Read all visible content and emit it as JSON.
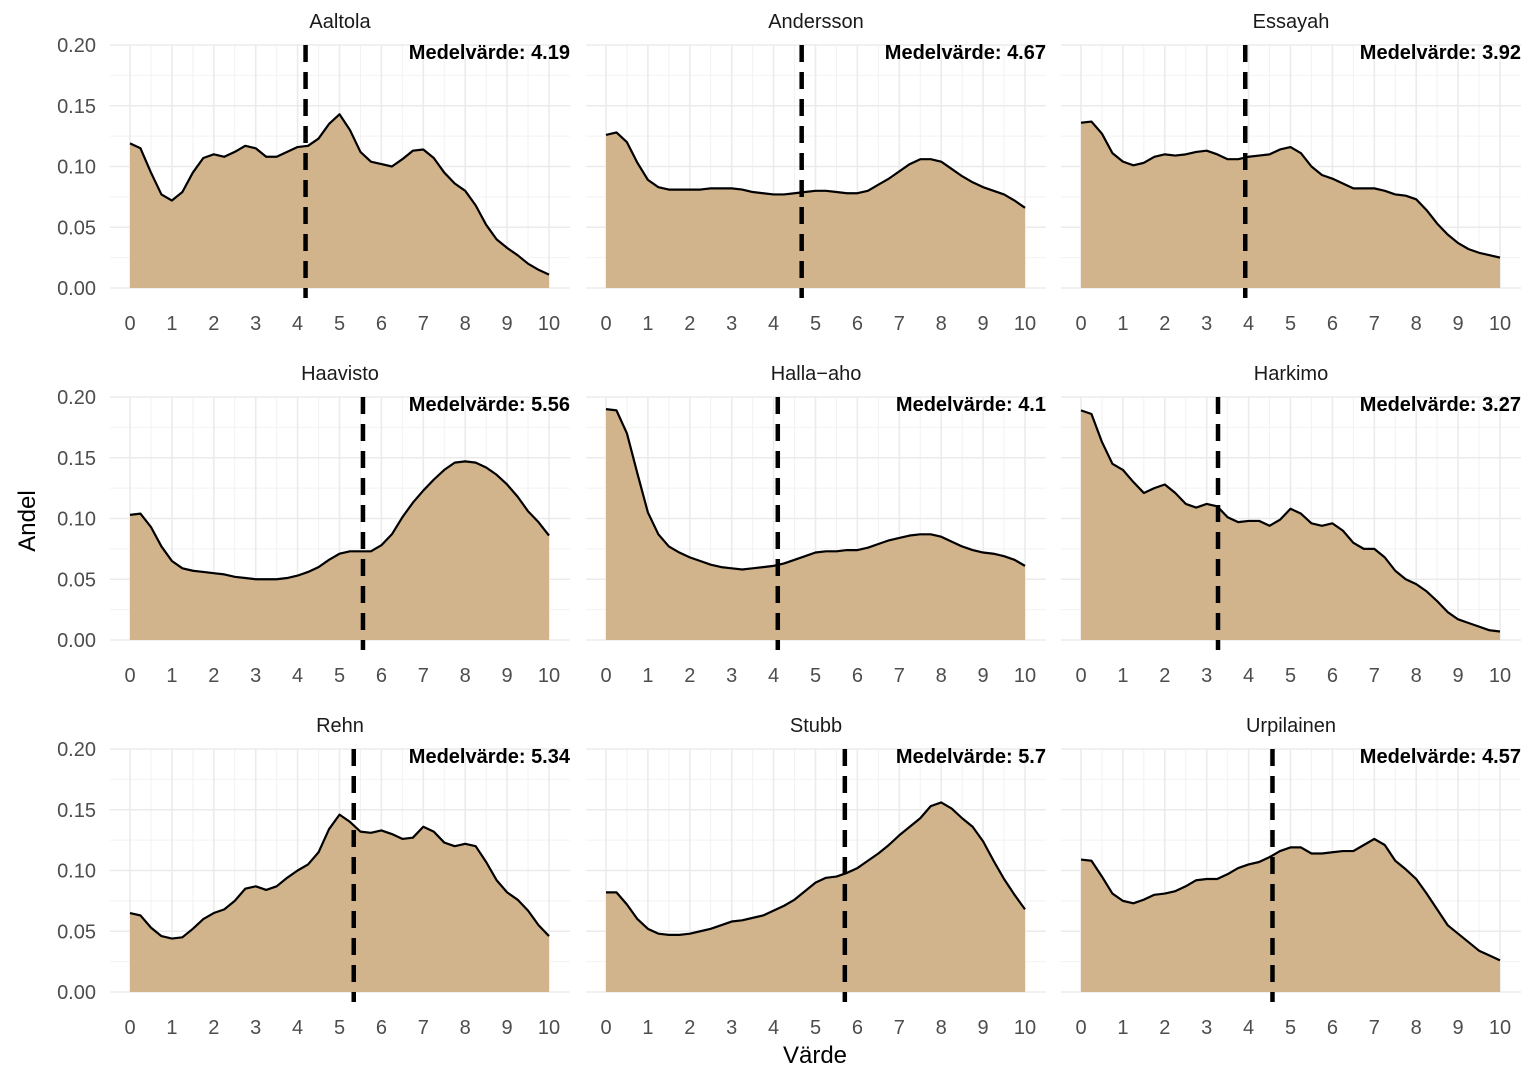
{
  "chart_data": {
    "type": "area",
    "description_axis": {
      "xlabel": "Värde",
      "ylabel": "Andel",
      "xlim": [
        0,
        10
      ],
      "ylim": [
        0,
        0.2
      ],
      "xticks": [
        "0",
        "1",
        "2",
        "3",
        "4",
        "5",
        "6",
        "7",
        "8",
        "9",
        "10"
      ],
      "yticks": [
        "0.00",
        "0.05",
        "0.10",
        "0.15",
        "0.20"
      ]
    },
    "mean_prefix": "Medelvärde:",
    "fill_color": "#d2b48c",
    "line_color": "#000000",
    "grid": true,
    "x": [
      0,
      0.25,
      0.5,
      0.75,
      1,
      1.25,
      1.5,
      1.75,
      2,
      2.25,
      2.5,
      2.75,
      3,
      3.25,
      3.5,
      3.75,
      4,
      4.25,
      4.5,
      4.75,
      5,
      5.25,
      5.5,
      5.75,
      6,
      6.25,
      6.5,
      6.75,
      7,
      7.25,
      7.5,
      7.75,
      8,
      8.25,
      8.5,
      8.75,
      9,
      9.25,
      9.5,
      9.75,
      10
    ],
    "panels": [
      {
        "name": "Aaltola",
        "mean": "4.19",
        "mean_value": 4.19,
        "values": [
          0.119,
          0.115,
          0.095,
          0.077,
          0.072,
          0.079,
          0.095,
          0.107,
          0.11,
          0.108,
          0.112,
          0.117,
          0.115,
          0.108,
          0.108,
          0.112,
          0.116,
          0.117,
          0.123,
          0.135,
          0.143,
          0.13,
          0.112,
          0.104,
          0.102,
          0.1,
          0.106,
          0.113,
          0.114,
          0.107,
          0.095,
          0.086,
          0.08,
          0.068,
          0.052,
          0.04,
          0.033,
          0.027,
          0.02,
          0.015,
          0.011
        ]
      },
      {
        "name": "Andersson",
        "mean": "4.67",
        "mean_value": 4.67,
        "values": [
          0.126,
          0.128,
          0.12,
          0.103,
          0.089,
          0.083,
          0.081,
          0.081,
          0.081,
          0.081,
          0.082,
          0.082,
          0.082,
          0.081,
          0.079,
          0.078,
          0.077,
          0.077,
          0.078,
          0.079,
          0.08,
          0.08,
          0.079,
          0.078,
          0.078,
          0.08,
          0.085,
          0.09,
          0.096,
          0.102,
          0.106,
          0.106,
          0.104,
          0.098,
          0.092,
          0.087,
          0.083,
          0.08,
          0.077,
          0.072,
          0.066
        ]
      },
      {
        "name": "Essayah",
        "mean": "3.92",
        "mean_value": 3.92,
        "values": [
          0.136,
          0.137,
          0.127,
          0.111,
          0.104,
          0.101,
          0.103,
          0.108,
          0.11,
          0.109,
          0.11,
          0.112,
          0.113,
          0.11,
          0.106,
          0.106,
          0.108,
          0.109,
          0.11,
          0.114,
          0.116,
          0.111,
          0.1,
          0.093,
          0.09,
          0.086,
          0.082,
          0.082,
          0.082,
          0.08,
          0.077,
          0.076,
          0.073,
          0.064,
          0.053,
          0.044,
          0.037,
          0.032,
          0.029,
          0.027,
          0.025
        ]
      },
      {
        "name": "Haavisto",
        "mean": "5.56",
        "mean_value": 5.56,
        "values": [
          0.103,
          0.104,
          0.093,
          0.077,
          0.065,
          0.059,
          0.057,
          0.056,
          0.055,
          0.054,
          0.052,
          0.051,
          0.05,
          0.05,
          0.05,
          0.051,
          0.053,
          0.056,
          0.06,
          0.066,
          0.071,
          0.073,
          0.073,
          0.073,
          0.078,
          0.087,
          0.101,
          0.113,
          0.123,
          0.132,
          0.14,
          0.146,
          0.147,
          0.146,
          0.142,
          0.136,
          0.128,
          0.118,
          0.106,
          0.097,
          0.086
        ]
      },
      {
        "name": "Halla−aho",
        "mean": "4.1",
        "mean_value": 4.1,
        "values": [
          0.19,
          0.189,
          0.17,
          0.137,
          0.105,
          0.087,
          0.077,
          0.072,
          0.068,
          0.065,
          0.062,
          0.06,
          0.059,
          0.058,
          0.059,
          0.06,
          0.061,
          0.063,
          0.066,
          0.069,
          0.072,
          0.073,
          0.073,
          0.074,
          0.074,
          0.076,
          0.079,
          0.082,
          0.084,
          0.086,
          0.087,
          0.087,
          0.085,
          0.081,
          0.077,
          0.074,
          0.072,
          0.071,
          0.069,
          0.066,
          0.061
        ]
      },
      {
        "name": "Harkimo",
        "mean": "3.27",
        "mean_value": 3.27,
        "values": [
          0.189,
          0.186,
          0.163,
          0.145,
          0.14,
          0.13,
          0.121,
          0.125,
          0.128,
          0.121,
          0.112,
          0.109,
          0.112,
          0.11,
          0.101,
          0.097,
          0.098,
          0.098,
          0.094,
          0.099,
          0.108,
          0.104,
          0.096,
          0.094,
          0.096,
          0.09,
          0.08,
          0.075,
          0.075,
          0.068,
          0.057,
          0.05,
          0.046,
          0.04,
          0.032,
          0.023,
          0.017,
          0.014,
          0.011,
          0.008,
          0.007
        ]
      },
      {
        "name": "Rehn",
        "mean": "5.34",
        "mean_value": 5.34,
        "values": [
          0.065,
          0.063,
          0.053,
          0.046,
          0.044,
          0.045,
          0.052,
          0.06,
          0.065,
          0.068,
          0.075,
          0.085,
          0.087,
          0.084,
          0.087,
          0.094,
          0.1,
          0.105,
          0.115,
          0.134,
          0.146,
          0.14,
          0.132,
          0.131,
          0.133,
          0.13,
          0.126,
          0.127,
          0.136,
          0.132,
          0.123,
          0.12,
          0.122,
          0.12,
          0.107,
          0.092,
          0.082,
          0.076,
          0.067,
          0.055,
          0.046
        ]
      },
      {
        "name": "Stubb",
        "mean": "5.7",
        "mean_value": 5.7,
        "values": [
          0.082,
          0.082,
          0.072,
          0.06,
          0.052,
          0.048,
          0.047,
          0.047,
          0.048,
          0.05,
          0.052,
          0.055,
          0.058,
          0.059,
          0.061,
          0.063,
          0.067,
          0.071,
          0.076,
          0.083,
          0.09,
          0.094,
          0.095,
          0.098,
          0.102,
          0.108,
          0.114,
          0.121,
          0.129,
          0.136,
          0.143,
          0.153,
          0.156,
          0.151,
          0.143,
          0.136,
          0.124,
          0.108,
          0.093,
          0.08,
          0.068
        ]
      },
      {
        "name": "Urpilainen",
        "mean": "4.57",
        "mean_value": 4.57,
        "values": [
          0.109,
          0.108,
          0.095,
          0.081,
          0.075,
          0.073,
          0.076,
          0.08,
          0.081,
          0.083,
          0.087,
          0.092,
          0.093,
          0.093,
          0.097,
          0.102,
          0.105,
          0.107,
          0.111,
          0.116,
          0.119,
          0.119,
          0.114,
          0.114,
          0.115,
          0.116,
          0.116,
          0.121,
          0.126,
          0.121,
          0.108,
          0.101,
          0.093,
          0.081,
          0.068,
          0.055,
          0.048,
          0.041,
          0.034,
          0.03,
          0.026
        ]
      }
    ]
  }
}
